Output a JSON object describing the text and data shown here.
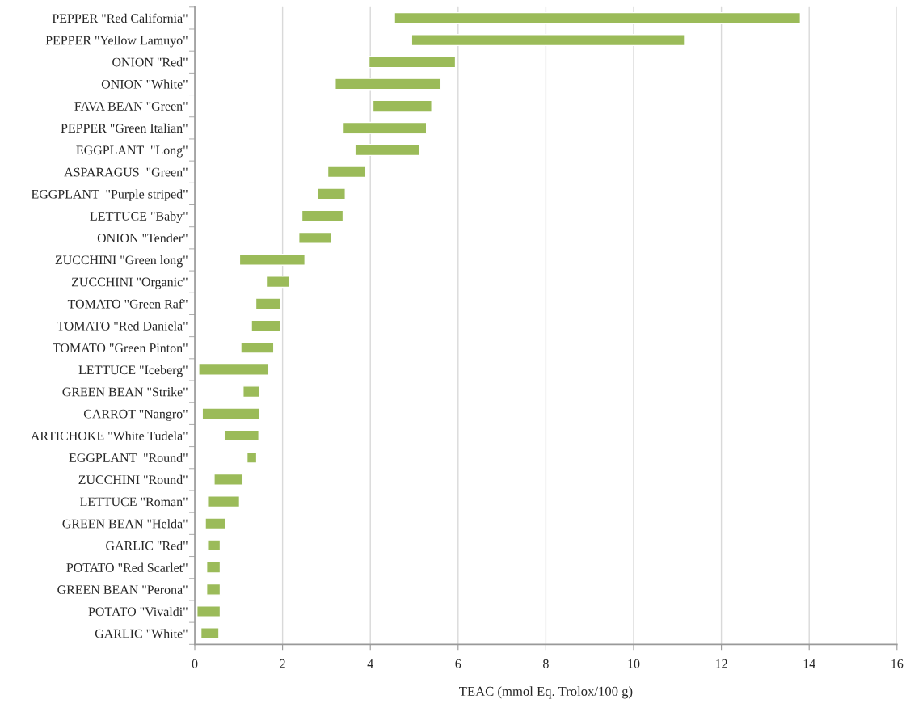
{
  "chart_data": {
    "type": "bar",
    "orientation": "horizontal",
    "xlabel": "TEAC (mmol Eq. Trolox/100 g)",
    "categories": [
      "PEPPER \"Red California\"",
      "PEPPER \"Yellow Lamuyo\"",
      "ONION \"Red\"",
      "ONION \"White\"",
      "FAVA BEAN \"Green\"",
      "PEPPER \"Green Italian\"",
      "EGGPLANT  \"Long\"",
      "ASPARAGUS  \"Green\"",
      "EGGPLANT  \"Purple striped\"",
      "LETTUCE \"Baby\"",
      "ONION \"Tender\"",
      "ZUCCHINI \"Green long\"",
      "ZUCCHINI \"Organic\"",
      "TOMATO \"Green Raf\"",
      "TOMATO \"Red Daniela\"",
      "TOMATO \"Green Pinton\"",
      "LETTUCE \"Iceberg\"",
      "GREEN BEAN \"Strike\"",
      "CARROT \"Nangro\"",
      "ARTICHOKE \"White Tudela\"",
      "EGGPLANT  \"Round\"",
      "ZUCCHINI \"Round\"",
      "LETTUCE \"Roman\"",
      "GREEN BEAN \"Helda\"",
      "GARLIC \"Red\"",
      "POTATO \"Red Scarlet\"",
      "GREEN BEAN \"Perona\"",
      "POTATO \"Vivaldi\"",
      "GARLIC \"White\""
    ],
    "base": [
      4.55,
      4.94,
      3.97,
      3.2,
      4.06,
      3.38,
      3.65,
      3.03,
      2.79,
      2.44,
      2.37,
      1.02,
      1.63,
      1.39,
      1.29,
      1.05,
      0.09,
      1.1,
      0.17,
      0.68,
      1.19,
      0.44,
      0.29,
      0.24,
      0.29,
      0.27,
      0.27,
      0.05,
      0.14
    ],
    "values": [
      9.25,
      6.22,
      1.97,
      2.4,
      1.34,
      1.9,
      1.47,
      0.86,
      0.64,
      0.94,
      0.74,
      1.49,
      0.53,
      0.56,
      0.66,
      0.75,
      1.59,
      0.38,
      1.31,
      0.78,
      0.22,
      0.65,
      0.73,
      0.46,
      0.29,
      0.31,
      0.31,
      0.53,
      0.41
    ],
    "color": "#9bbb59",
    "xlim": [
      0,
      16
    ],
    "xticks": [
      0,
      2,
      4,
      6,
      8,
      10,
      12,
      14,
      16
    ],
    "grid": "x"
  }
}
